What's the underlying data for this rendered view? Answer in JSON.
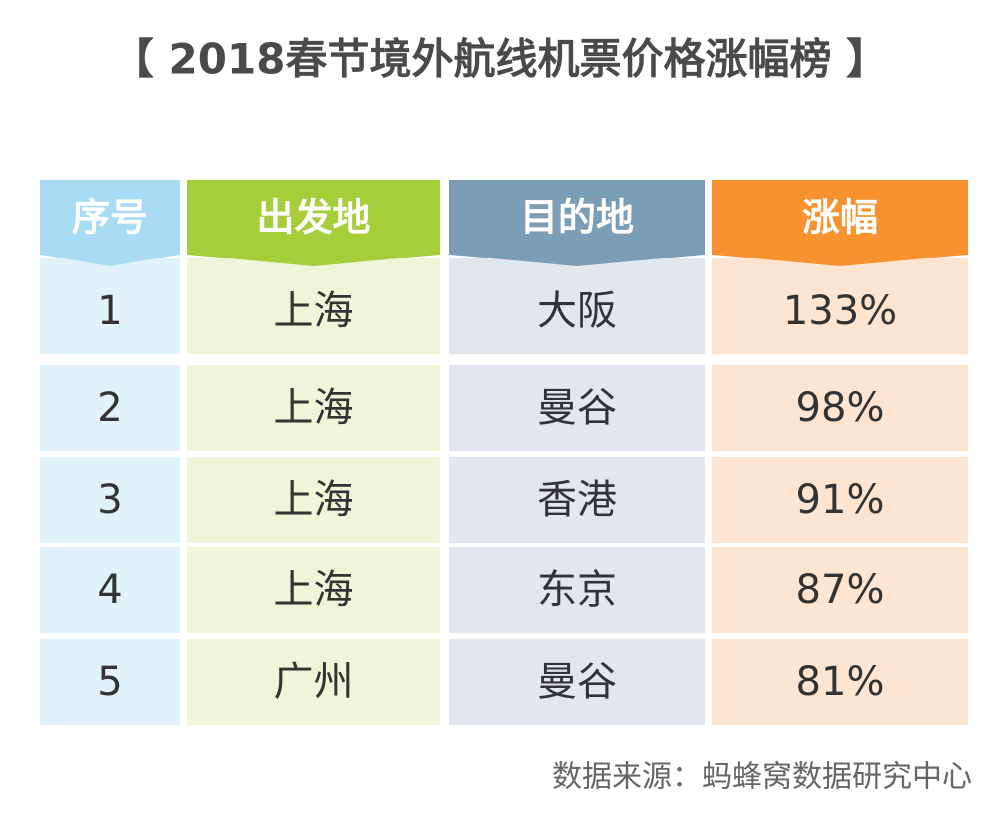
{
  "header": {
    "title": "【 2018春节境外航线机票价格涨幅榜 】"
  },
  "table": {
    "columns": [
      "序号",
      "出发地",
      "目的地",
      "涨幅"
    ],
    "rows": [
      [
        "1",
        "上海",
        "大阪",
        "133%"
      ],
      [
        "2",
        "上海",
        "曼谷",
        "98%"
      ],
      [
        "3",
        "上海",
        "香港",
        "91%"
      ],
      [
        "4",
        "上海",
        "东京",
        "87%"
      ],
      [
        "5",
        "广州",
        "曼谷",
        "81%"
      ]
    ]
  },
  "footer": {
    "source": "数据来源：蚂蜂窝数据研究中心"
  }
}
